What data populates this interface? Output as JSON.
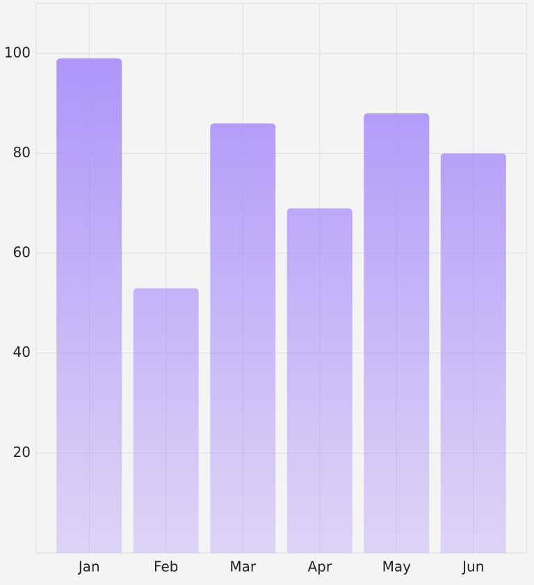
{
  "chart_data": {
    "type": "bar",
    "categories": [
      "Jan",
      "Feb",
      "Mar",
      "Apr",
      "May",
      "Jun"
    ],
    "values": [
      99,
      53,
      86,
      69,
      88,
      80
    ],
    "color": "#a78bfa",
    "ylim": [
      0,
      110
    ],
    "yticks": [
      20,
      40,
      60,
      80,
      100
    ],
    "grid": true
  }
}
